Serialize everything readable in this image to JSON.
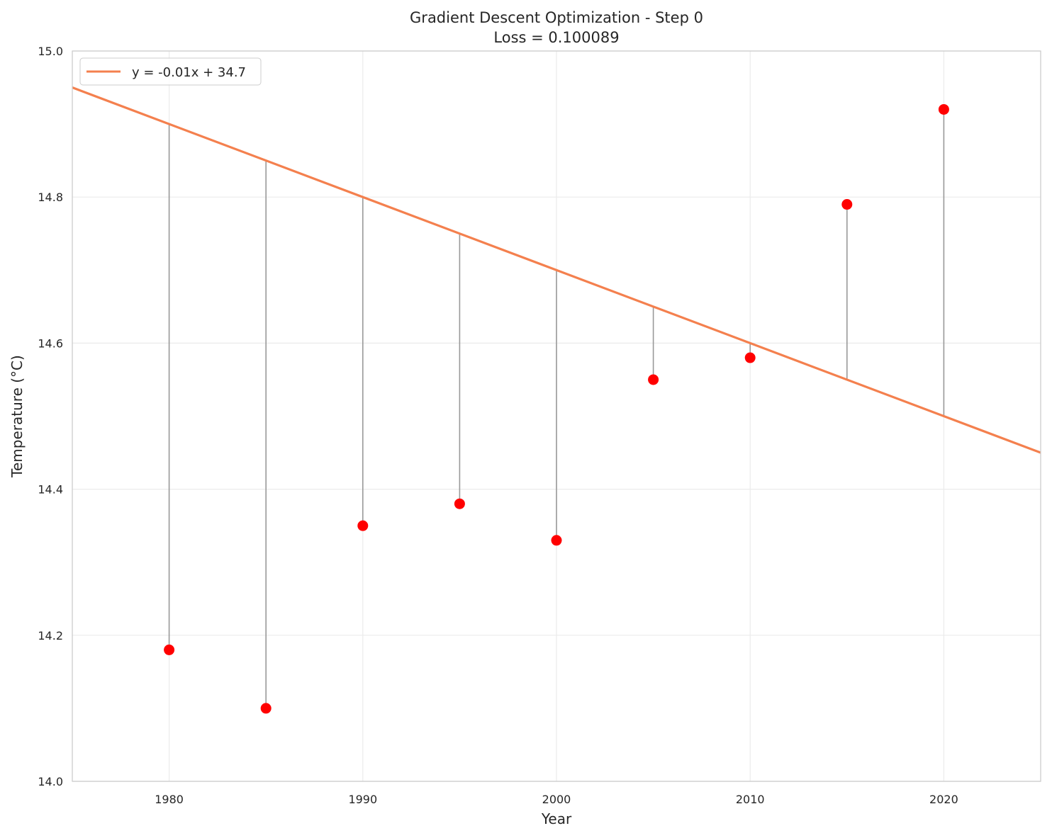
{
  "chart_data": {
    "type": "scatter",
    "title": "Gradient Descent Optimization - Step 0",
    "subtitle": "Loss = 0.100089",
    "xlabel": "Year",
    "ylabel": "Temperature (°C)",
    "xlim": [
      1975,
      2025
    ],
    "ylim": [
      14.0,
      15.0
    ],
    "xticks": [
      1980,
      1990,
      2000,
      2010,
      2020
    ],
    "xtick_labels": [
      "1980",
      "1990",
      "2000",
      "2010",
      "2020"
    ],
    "yticks": [
      14.0,
      14.2,
      14.4,
      14.6,
      14.8,
      15.0
    ],
    "ytick_labels": [
      "14.0",
      "14.2",
      "14.4",
      "14.6",
      "14.8",
      "15.0"
    ],
    "grid": true,
    "legend_position": "top-left",
    "points": {
      "x": [
        1980,
        1985,
        1990,
        1995,
        2000,
        2005,
        2010,
        2015,
        2020
      ],
      "y": [
        14.18,
        14.1,
        14.35,
        14.38,
        14.33,
        14.55,
        14.58,
        14.79,
        14.92
      ],
      "color": "#ff0000"
    },
    "fit_line": {
      "label": "y = -0.01x + 34.7",
      "slope": -0.01,
      "intercept": 34.7,
      "color": "#f4804e"
    },
    "residual_color": "#999999"
  }
}
